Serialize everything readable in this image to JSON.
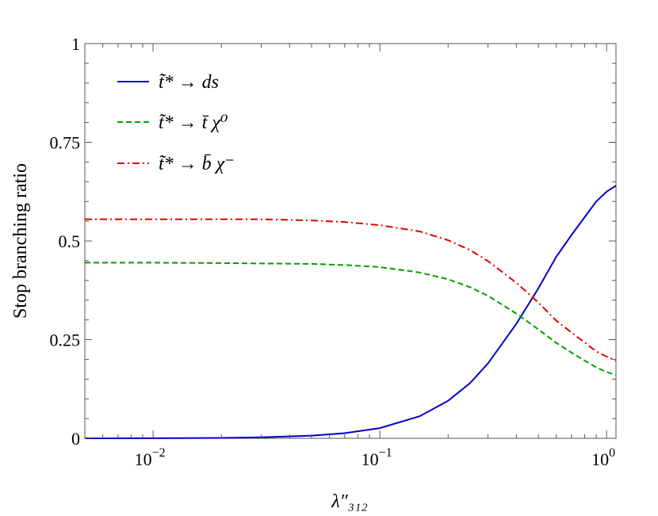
{
  "chart_data": {
    "type": "line",
    "xlabel": "λ″₃₁₂",
    "ylabel": "Stop branching ratio",
    "x_scale": "log",
    "xlim": [
      0.005,
      1.1
    ],
    "ylim": [
      0,
      1
    ],
    "x_ticks": [
      {
        "value": 0.01,
        "base": "10",
        "exp": "−2"
      },
      {
        "value": 0.1,
        "base": "10",
        "exp": "−1"
      },
      {
        "value": 1.0,
        "base": "10",
        "exp": "0"
      }
    ],
    "y_ticks": [
      {
        "value": 0,
        "label": "0"
      },
      {
        "value": 0.25,
        "label": "0.25"
      },
      {
        "value": 0.5,
        "label": "0.5"
      },
      {
        "value": 0.75,
        "label": "0.75"
      },
      {
        "value": 1,
        "label": "1"
      }
    ],
    "grid": false,
    "legend_position": "top-left",
    "series": [
      {
        "name": "t̃* → ds",
        "color": "#0000cc",
        "dash": "solid",
        "x": [
          0.005,
          0.01,
          0.02,
          0.03,
          0.05,
          0.07,
          0.1,
          0.15,
          0.2,
          0.25,
          0.3,
          0.4,
          0.5,
          0.6,
          0.7,
          0.8,
          0.9,
          1.0,
          1.1
        ],
        "y": [
          0.0001,
          0.0003,
          0.0011,
          0.0025,
          0.0068,
          0.013,
          0.026,
          0.056,
          0.095,
          0.14,
          0.19,
          0.29,
          0.38,
          0.46,
          0.515,
          0.56,
          0.6,
          0.625,
          0.64
        ]
      },
      {
        "name": "t̃* → t̄ χ⁰",
        "color": "#00a000",
        "dash": "dashed",
        "x": [
          0.005,
          0.01,
          0.02,
          0.03,
          0.05,
          0.07,
          0.1,
          0.15,
          0.2,
          0.25,
          0.3,
          0.4,
          0.5,
          0.6,
          0.7,
          0.8,
          0.9,
          1.0,
          1.1
        ],
        "y": [
          0.445,
          0.445,
          0.444,
          0.443,
          0.442,
          0.439,
          0.434,
          0.42,
          0.403,
          0.383,
          0.361,
          0.316,
          0.276,
          0.242,
          0.217,
          0.197,
          0.18,
          0.168,
          0.16
        ]
      },
      {
        "name": "t̃* → b̄ χ⁻",
        "color": "#e00000",
        "dash": "dashdot",
        "x": [
          0.005,
          0.01,
          0.02,
          0.03,
          0.05,
          0.07,
          0.1,
          0.15,
          0.2,
          0.25,
          0.3,
          0.4,
          0.5,
          0.6,
          0.7,
          0.8,
          0.9,
          1.0,
          1.1
        ],
        "y": [
          0.555,
          0.555,
          0.555,
          0.555,
          0.552,
          0.548,
          0.54,
          0.524,
          0.502,
          0.477,
          0.449,
          0.394,
          0.344,
          0.298,
          0.268,
          0.243,
          0.22,
          0.207,
          0.197
        ]
      }
    ]
  }
}
